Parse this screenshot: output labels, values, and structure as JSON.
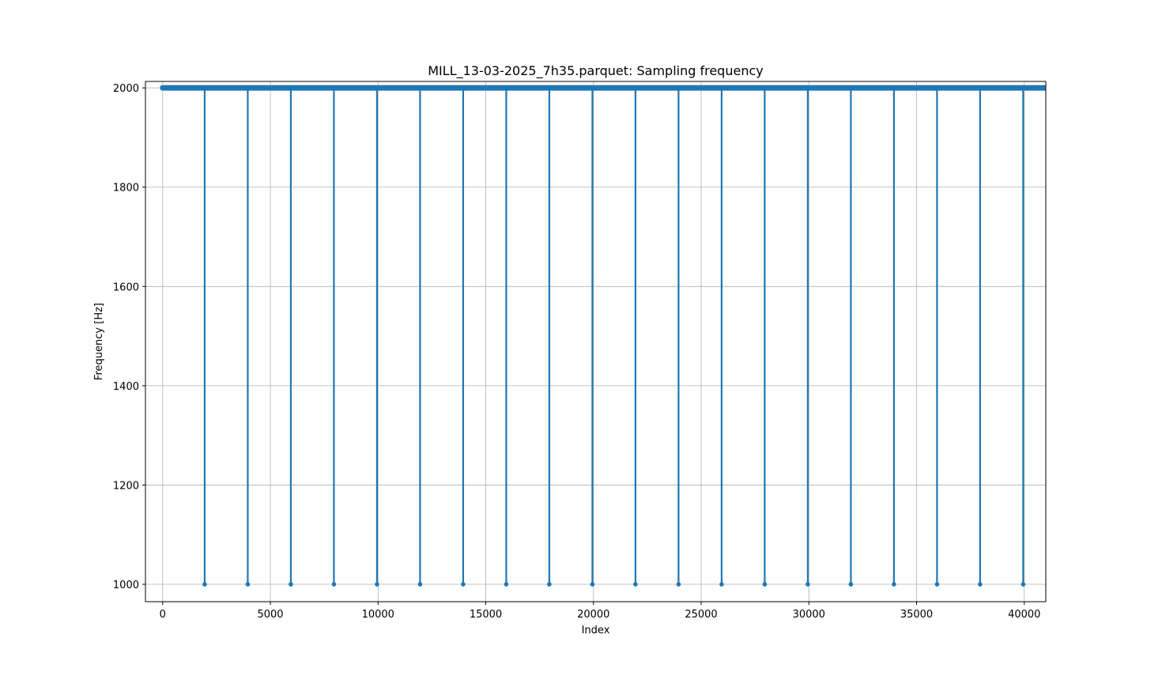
{
  "chart_data": {
    "type": "line",
    "title": "MILL_13-03-2025_7h35.parquet: Sampling frequency",
    "xlabel": "Index",
    "ylabel": "Frequency [Hz]",
    "xlim": [
      -800,
      41000
    ],
    "ylim": [
      965,
      2013
    ],
    "grid": true,
    "x_ticks": [
      0,
      5000,
      10000,
      15000,
      20000,
      25000,
      30000,
      35000,
      40000
    ],
    "x_tick_labels": [
      "0",
      "5000",
      "10000",
      "15000",
      "20000",
      "25000",
      "30000",
      "35000",
      "40000"
    ],
    "y_ticks": [
      1000,
      1200,
      1400,
      1600,
      1800,
      2000
    ],
    "y_tick_labels": [
      "1000",
      "1200",
      "1400",
      "1600",
      "1800",
      "2000"
    ],
    "series": [
      {
        "color": "#1f77b4",
        "baseline_value": 2000,
        "x_start": 0,
        "x_end": 41000,
        "drop_value": 1000,
        "drop_x": [
          1950,
          3950,
          5950,
          7950,
          9950,
          11950,
          13950,
          15950,
          17950,
          19950,
          21950,
          23950,
          25950,
          27950,
          29950,
          31950,
          33950,
          35950,
          37950,
          39950
        ]
      }
    ]
  }
}
